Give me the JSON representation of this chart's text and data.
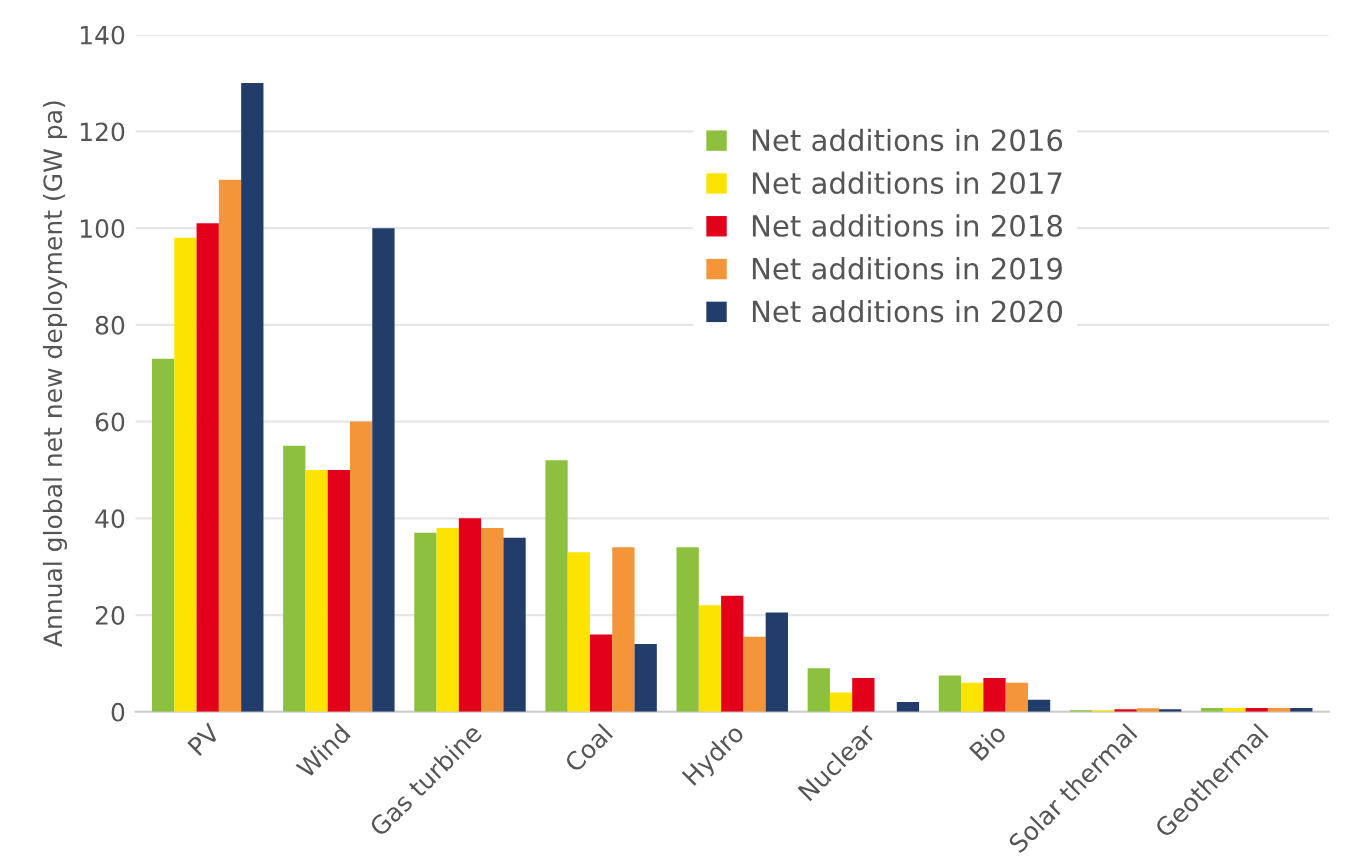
{
  "chart_data": {
    "type": "bar",
    "ylabel": "Annual global net new deployment (GW pa)",
    "categories": [
      "PV",
      "Wind",
      "Gas turbine",
      "Coal",
      "Hydro",
      "Nuclear",
      "Bio",
      "Solar thermal",
      "Geothermal"
    ],
    "series": [
      {
        "name": "Net additions in 2016",
        "color": "#8dc03f",
        "values": [
          73,
          55,
          37,
          52,
          34,
          9,
          7.5,
          0.3,
          0.8
        ]
      },
      {
        "name": "Net additions in 2017",
        "color": "#fce300",
        "values": [
          98,
          50,
          38,
          33,
          22,
          4,
          6,
          0.3,
          0.8
        ]
      },
      {
        "name": "Net additions in 2018",
        "color": "#e3001b",
        "values": [
          101,
          50,
          40,
          16,
          24,
          7,
          7,
          0.5,
          0.8
        ]
      },
      {
        "name": "Net additions in 2019",
        "color": "#f39538",
        "values": [
          110,
          60,
          38,
          34,
          15.5,
          0,
          6,
          0.7,
          0.8
        ]
      },
      {
        "name": "Net additions in 2020",
        "color": "#233d6b",
        "values": [
          130,
          100,
          36,
          14,
          20.5,
          2,
          2.5,
          0.5,
          0.8
        ]
      }
    ],
    "ylim": [
      0,
      140
    ],
    "yticks": [
      0,
      20,
      40,
      60,
      80,
      100,
      120,
      140
    ],
    "grid": "y",
    "legend": "top right"
  }
}
